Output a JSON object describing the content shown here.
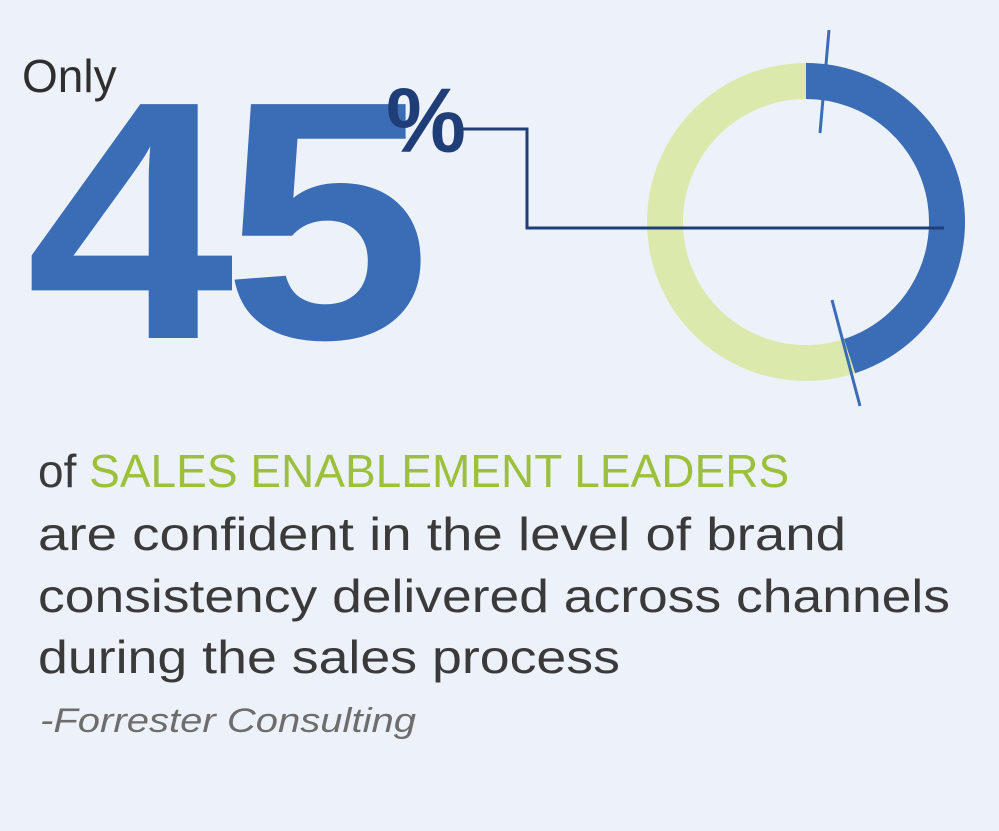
{
  "lead": "Only",
  "stat": {
    "value": 45,
    "unit": "%",
    "color": "#3b6cb6",
    "track_color": "#dbe9ac"
  },
  "body": {
    "prefix": "of",
    "highlight": "SALES ENABLEMENT LEADERS",
    "lines": [
      "are confident in the level of brand",
      "consistency delivered across channels",
      "during the sales process"
    ]
  },
  "source": "-Forrester Consulting"
}
